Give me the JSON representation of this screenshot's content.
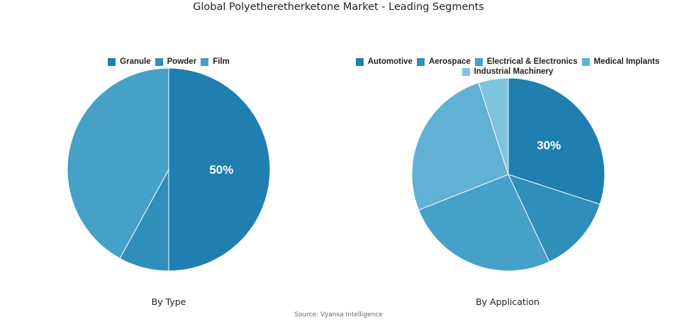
{
  "title": "Global Polyetheretherketone Market - Leading Segments",
  "source": "Source: Vyansa Intelligence",
  "chart_data": [
    {
      "type": "pie",
      "title": "By Type",
      "categories": [
        "Granule",
        "Powder",
        "Film"
      ],
      "values": [
        50,
        8,
        42
      ],
      "colors": [
        "#1f7fb0",
        "#2e8fba",
        "#45a1c7"
      ],
      "data_labels": [
        "50%",
        "",
        ""
      ],
      "legend_position": "top"
    },
    {
      "type": "pie",
      "title": "By Application",
      "categories": [
        "Automotive",
        "Aerospace",
        "Electrical & Electronics",
        "Medical Implants",
        "Industrial Machinery"
      ],
      "values": [
        30,
        13,
        26,
        26,
        5
      ],
      "colors": [
        "#1f7fb0",
        "#2e8fba",
        "#45a1c7",
        "#60b1d3",
        "#7ec4de"
      ],
      "data_labels": [
        "30%",
        "",
        "",
        "",
        ""
      ],
      "legend_position": "top"
    }
  ]
}
